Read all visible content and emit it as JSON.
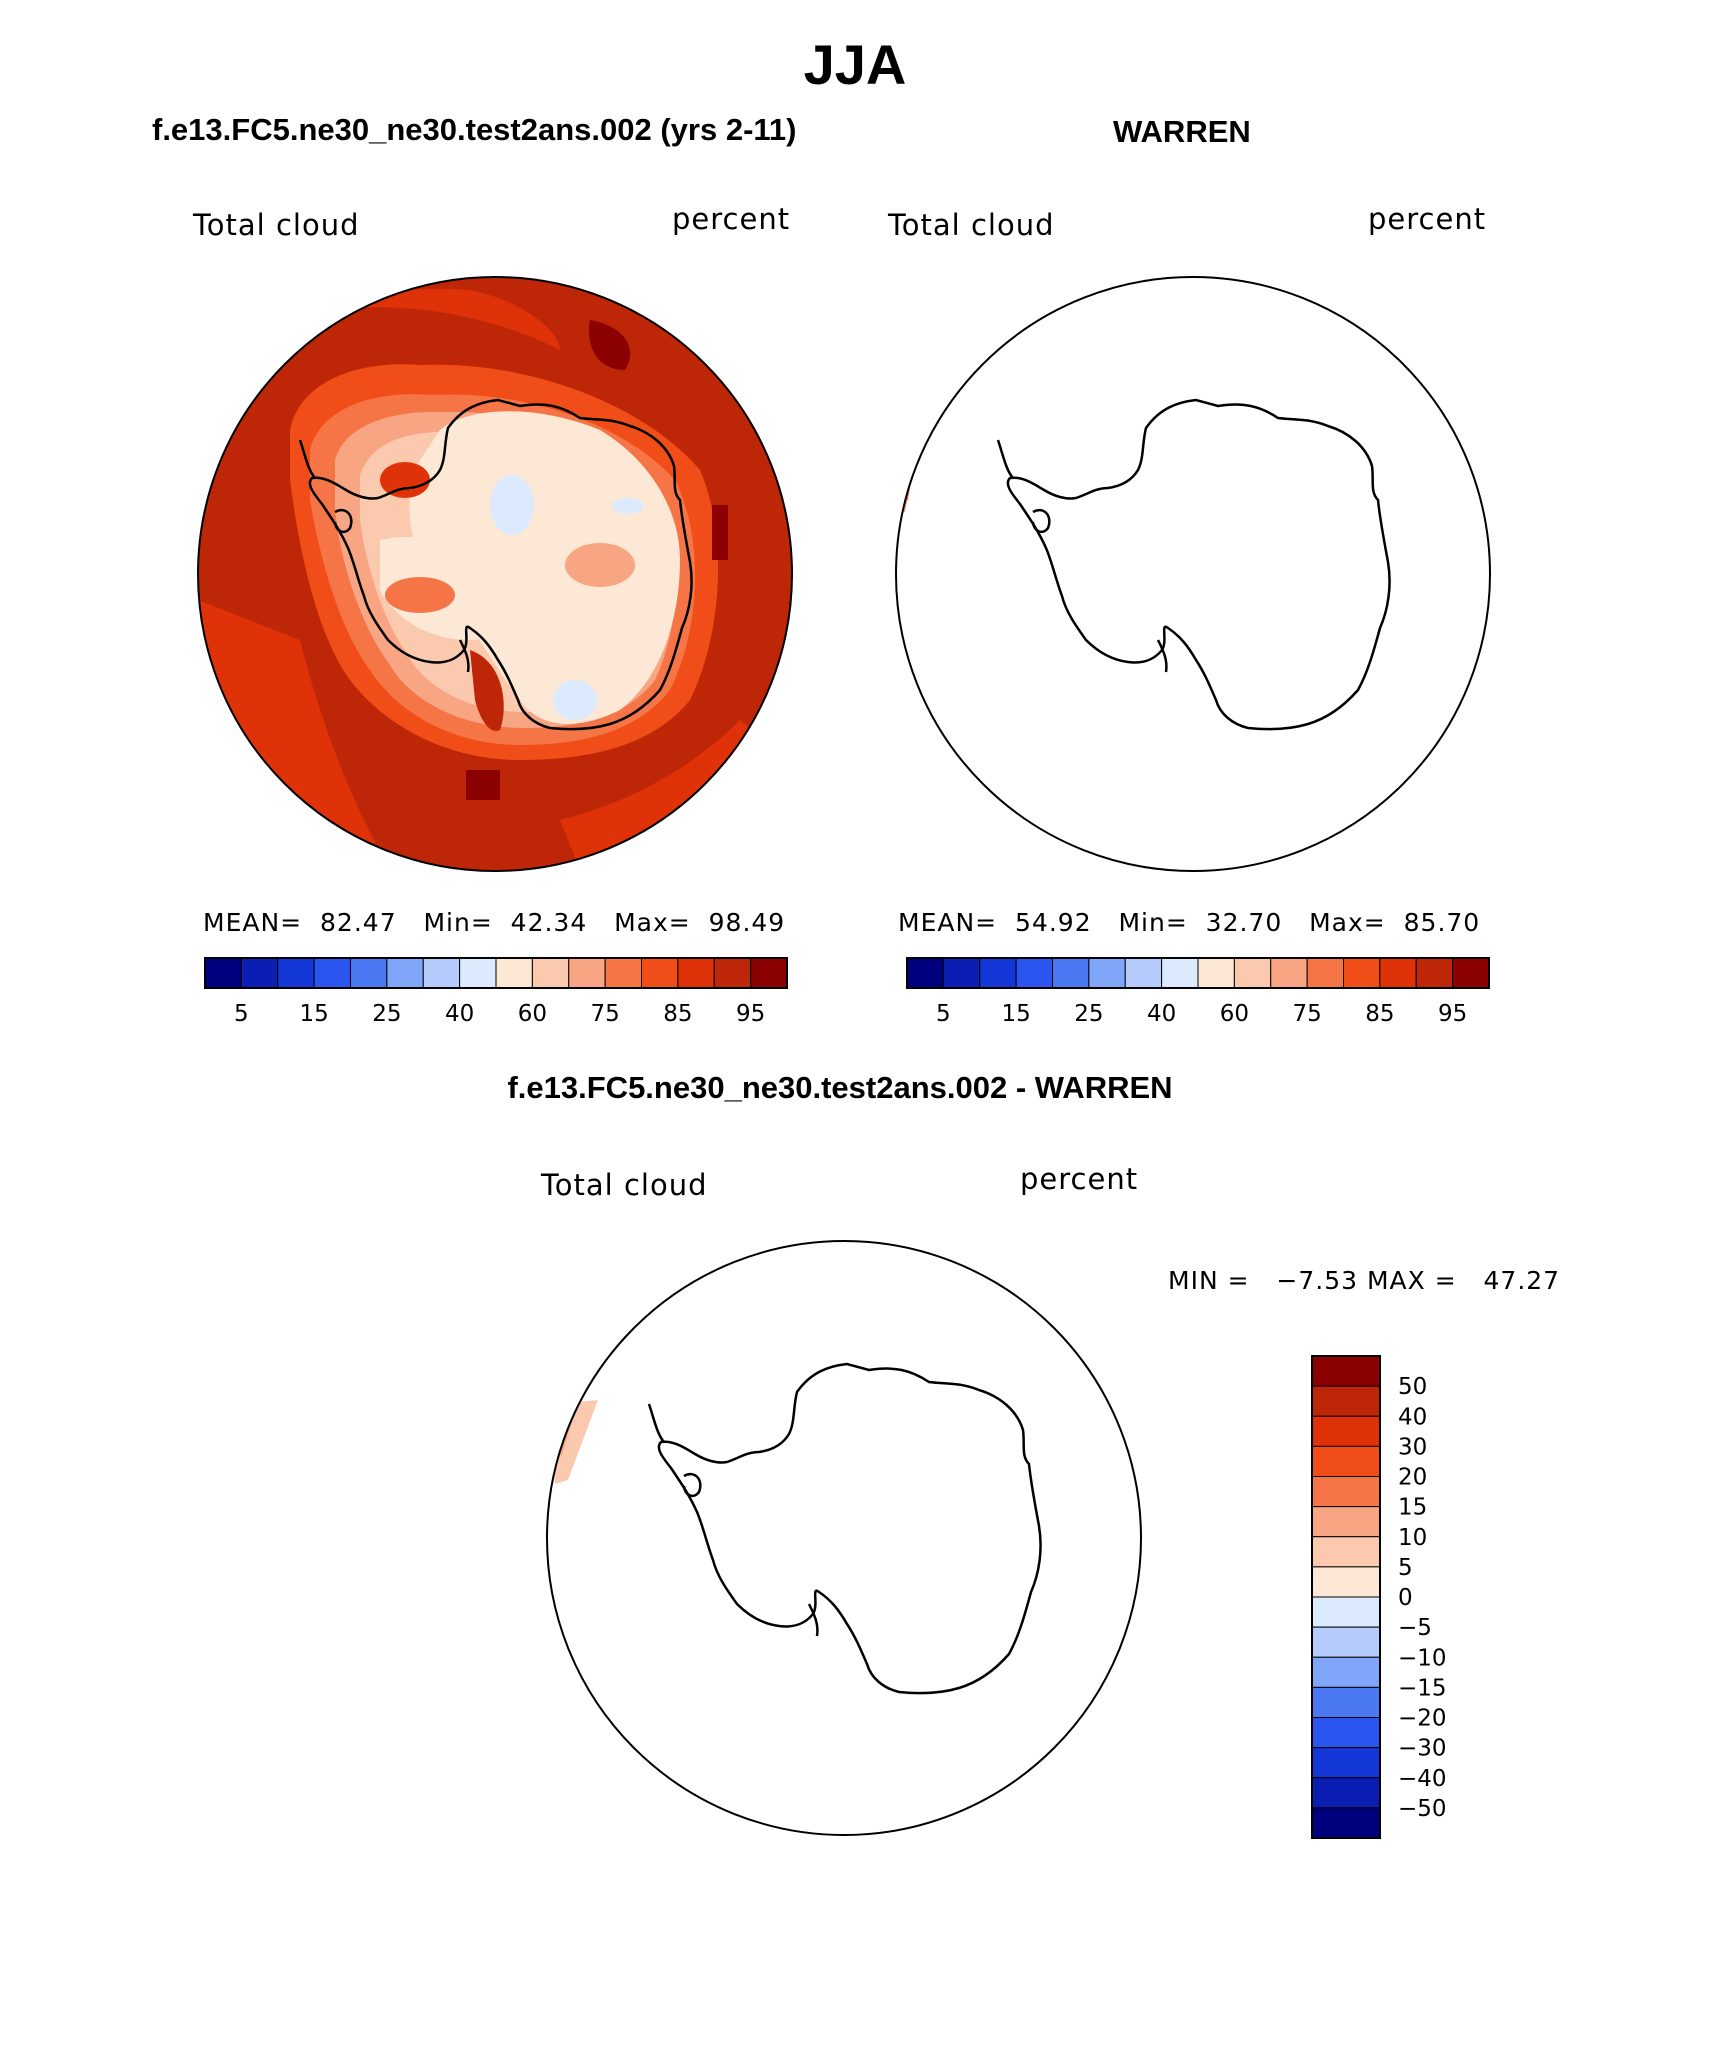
{
  "main_title": "JJA",
  "diff_title": "f.e13.FC5.ne30_ne30.test2ans.002 - WARREN",
  "panels": [
    {
      "title": "f.e13.FC5.ne30_ne30.test2ans.002 (yrs 2-11)",
      "variable": "Total cloud",
      "units": "percent",
      "stats": {
        "mean_label": "MEAN=",
        "mean": "82.47",
        "min_label": "Min=",
        "min": "42.34",
        "max_label": "Max=",
        "max": "98.49"
      }
    },
    {
      "title": "WARREN",
      "variable": "Total cloud",
      "units": "percent",
      "stats": {
        "mean_label": "MEAN=",
        "mean": "54.92",
        "min_label": "Min=",
        "min": "32.70",
        "max_label": "Max=",
        "max": "85.70"
      }
    },
    {
      "variable": "Total cloud",
      "units": "percent",
      "stats": {
        "min_label": "MIN =",
        "min": "−7.53",
        "max_label": "MAX =",
        "max": "47.27"
      }
    }
  ],
  "colorbar": {
    "colors": [
      "#00007f",
      "#0a1eb4",
      "#1437d7",
      "#2b55ef",
      "#4a77f2",
      "#7fa6f8",
      "#b5cbfb",
      "#dbeafd",
      "#fde8d6",
      "#fbcaae",
      "#f8a583",
      "#f57546",
      "#f14d18",
      "#e03208",
      "#bd2607",
      "#8b0000"
    ],
    "tick_labels": [
      "5",
      "15",
      "25",
      "40",
      "60",
      "75",
      "85",
      "95"
    ]
  },
  "diff_colorbar": {
    "colors": [
      "#8b0000",
      "#bd2607",
      "#e03208",
      "#f14d18",
      "#f57546",
      "#f8a583",
      "#fbcaae",
      "#fde8d6",
      "#dbeafd",
      "#b5cbfb",
      "#7fa6f8",
      "#4a77f2",
      "#2b55ef",
      "#1437d7",
      "#0a1eb4",
      "#00007f"
    ],
    "tick_labels": [
      "50",
      "40",
      "30",
      "20",
      "15",
      "10",
      "5",
      "0",
      "−5",
      "−10",
      "−15",
      "−20",
      "−30",
      "−40",
      "−50"
    ]
  }
}
